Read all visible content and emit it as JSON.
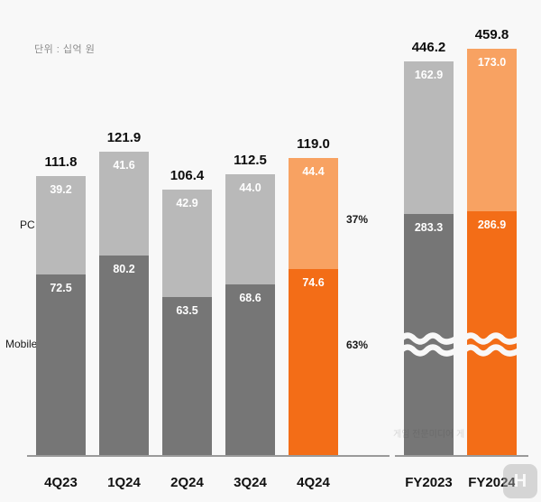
{
  "unit_label": "단위 : 십억 원",
  "axis_labels": {
    "pc": "PC",
    "mobile": "Mobile"
  },
  "percent_labels": {
    "pc": "37%",
    "mobile": "63%"
  },
  "watermark": {
    "text": "게임 전문미디어 게",
    "logo": "H"
  },
  "colors": {
    "mobile_gray": "#767676",
    "pc_gray": "#b9b9b9",
    "mobile_orange": "#f36d17",
    "pc_orange": "#f8a262",
    "background": "#f8f8f8",
    "axis_line": "#9a9a9a"
  },
  "chart_data": {
    "type": "bar",
    "subtype": "stacked",
    "title": "",
    "unit": "십억 원 (billion KRW)",
    "categories": [
      "4Q23",
      "1Q24",
      "2Q24",
      "3Q24",
      "4Q24"
    ],
    "series": [
      {
        "name": "Mobile",
        "values": [
          72.5,
          80.2,
          63.5,
          68.6,
          74.6
        ]
      },
      {
        "name": "PC",
        "values": [
          39.2,
          41.6,
          42.9,
          44.0,
          44.4
        ]
      }
    ],
    "totals": [
      111.8,
      121.9,
      106.4,
      112.5,
      119.0
    ],
    "highlight_category": "4Q24",
    "pct_annotations": {
      "PC": "37%",
      "Mobile": "63%"
    },
    "annual": {
      "categories": [
        "FY2023",
        "FY2024"
      ],
      "series": [
        {
          "name": "Mobile",
          "values": [
            283.3,
            286.9
          ]
        },
        {
          "name": "PC",
          "values": [
            162.9,
            173.0
          ]
        }
      ],
      "totals": [
        446.2,
        459.8
      ],
      "axis_break": true,
      "highlight_category": "FY2024"
    },
    "legend_position": "none",
    "grid": false
  }
}
